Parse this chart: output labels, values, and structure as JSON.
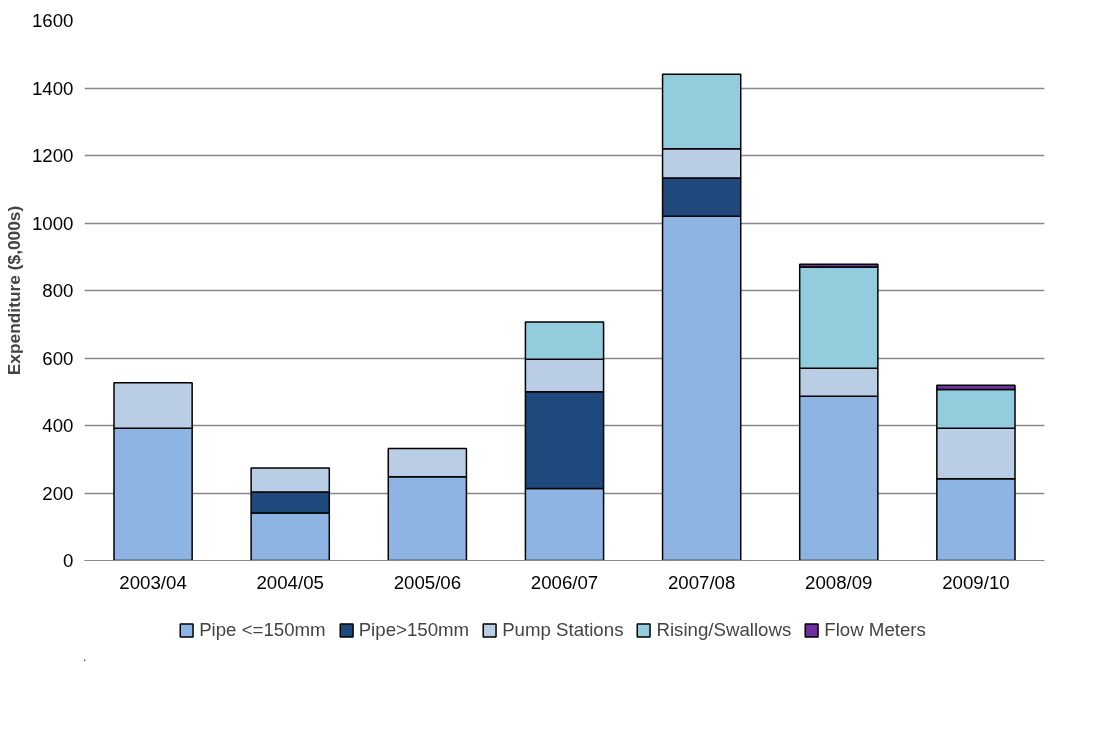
{
  "chart_data": {
    "type": "bar",
    "stacked": true,
    "ylabel": "Expenditure ($,000s)",
    "categories": [
      "2003/04",
      "2004/05",
      "2005/06",
      "2006/07",
      "2007/08",
      "2008/09",
      "2009/10"
    ],
    "series": [
      {
        "name": "Pipe <=150mm",
        "color": "#8eb4e3",
        "values": [
          392,
          141,
          248,
          213,
          1020,
          487,
          242
        ]
      },
      {
        "name": "Pipe>150mm",
        "color": "#1f497d",
        "values": [
          null,
          62,
          null,
          287,
          113,
          0,
          0
        ]
      },
      {
        "name": "Pump Stations",
        "color": "#b9cde5",
        "values": [
          135,
          71,
          84,
          96,
          87,
          83,
          150
        ]
      },
      {
        "name": "Rising/Swallows",
        "color": "#93cddd",
        "values": [
          0,
          0,
          0,
          111,
          221,
          300,
          115
        ]
      },
      {
        "name": "Flow Meters",
        "color": "#7030a0",
        "values": [
          0,
          0,
          0,
          0,
          0,
          8,
          12
        ]
      }
    ],
    "ylim": [
      0,
      1600
    ],
    "yticks": [
      0,
      200,
      400,
      600,
      800,
      1000,
      1200,
      1400,
      1600
    ],
    "grid": "y",
    "legend": "bottom"
  }
}
